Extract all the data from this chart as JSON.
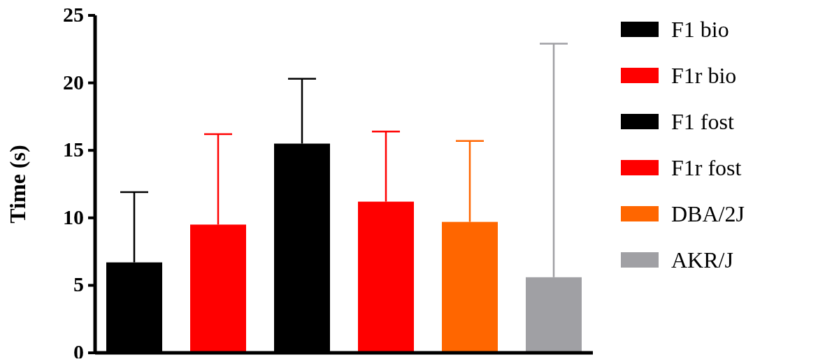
{
  "chart_data": {
    "type": "bar",
    "ylabel": "Time (s)",
    "categories": [
      null
    ],
    "series": [
      {
        "name": "F1 bio",
        "color": "#000000",
        "values": [
          6.7
        ],
        "errors": [
          [
            6.7,
            11.9
          ]
        ]
      },
      {
        "name": "F1r bio",
        "color": "#ff0000",
        "values": [
          9.5
        ],
        "errors": [
          [
            9.5,
            16.2
          ]
        ]
      },
      {
        "name": "F1 fost",
        "color": "#000000",
        "values": [
          15.5
        ],
        "errors": [
          [
            15.5,
            20.3
          ]
        ]
      },
      {
        "name": "F1r fost",
        "color": "#ff0000",
        "values": [
          11.2
        ],
        "errors": [
          [
            11.2,
            16.4
          ]
        ]
      },
      {
        "name": "DBA/2J",
        "color": "#ff6600",
        "values": [
          9.7
        ],
        "errors": [
          [
            9.7,
            15.7
          ]
        ]
      },
      {
        "name": "AKR/J",
        "color": "#a0a0a4",
        "values": [
          5.6
        ],
        "errors": [
          [
            5.6,
            22.9
          ]
        ]
      }
    ],
    "ylim": [
      0,
      25
    ],
    "yticks": [
      0,
      5,
      10,
      15,
      20,
      25
    ],
    "legend": "right"
  }
}
